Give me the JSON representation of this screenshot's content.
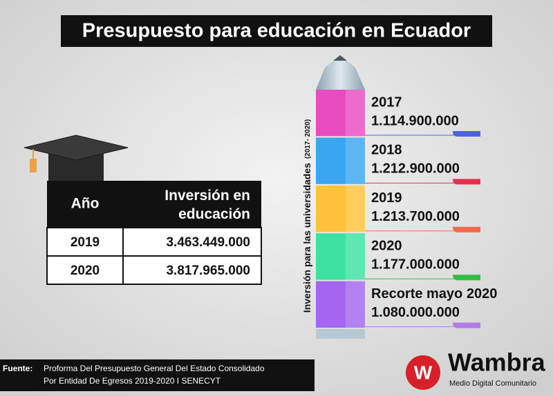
{
  "header": {
    "title": "Presupuesto para educación en Ecuador"
  },
  "table": {
    "columns": [
      "Año",
      "Inversión en educación"
    ],
    "rows": [
      [
        "2019",
        "3.463.449.000"
      ],
      [
        "2020",
        "3.817.965.000"
      ]
    ]
  },
  "pencil": {
    "label": "Inversión para las universidades",
    "sublabel": "(2017- 2020)",
    "items": [
      {
        "label": "2017",
        "amount": "1.114.900.000",
        "color": "#e84cc0",
        "accent": "#4a62e0"
      },
      {
        "label": "2018",
        "amount": "1.212.900.000",
        "color": "#3aa6f2",
        "accent": "#e8304e"
      },
      {
        "label": "2019",
        "amount": "1.213.700.000",
        "color": "#ffc23a",
        "accent": "#f26a4c"
      },
      {
        "label": "2020",
        "amount": "1.177.000.000",
        "color": "#3ee2a0",
        "accent": "#30c040"
      },
      {
        "label": "Recorte mayo 2020",
        "amount": "1.080.000.000",
        "color": "#a466f0",
        "accent": "#b47ae8"
      }
    ]
  },
  "source": {
    "label": "Fuente:",
    "lines": [
      "Proforma Del Presupuesto General Del Estado Consolidado",
      "Por Entidad De Egresos 2019-2020 I SENECYT"
    ]
  },
  "logo": {
    "icon": "W",
    "name": "Wambra",
    "tagline": "Medio Digital Comunitario"
  }
}
